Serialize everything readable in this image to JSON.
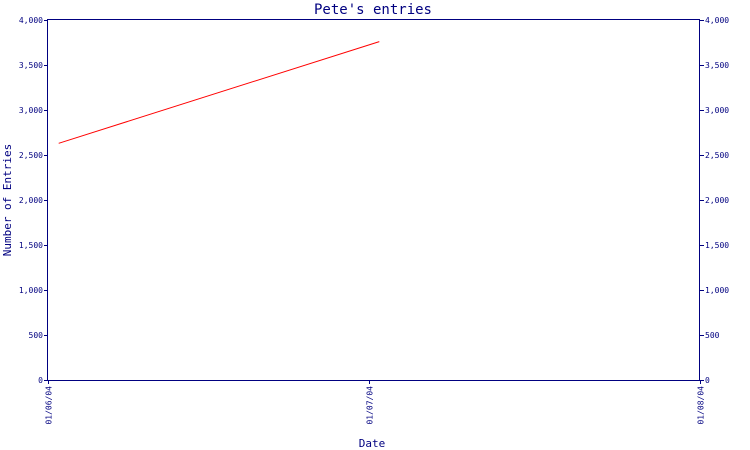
{
  "chart_data": {
    "type": "line",
    "title": "Pete's entries",
    "xlabel": "Date",
    "ylabel": "Number of Entries",
    "x_ticks": [
      "01/06/04",
      "01/07/04",
      "01/08/04"
    ],
    "xlim": [
      "2004-06-01",
      "2004-08-01"
    ],
    "ylim": [
      0,
      4000
    ],
    "y_ticks": [
      0,
      500,
      1000,
      1500,
      2000,
      2500,
      3000,
      3500,
      4000
    ],
    "y_tick_labels": [
      "0",
      "500",
      "1,000",
      "1,500",
      "2,000",
      "2,500",
      "3,000",
      "3,500",
      "4,000"
    ],
    "right_axis": true,
    "grid": false,
    "series": [
      {
        "color": "#ff0000",
        "points": [
          {
            "x": "2004-06-02",
            "y": 2630
          },
          {
            "x": "2004-07-02",
            "y": 3760
          }
        ]
      }
    ],
    "colors": {
      "axis": "#000080",
      "text": "#000080",
      "series": "#ff0000"
    }
  }
}
